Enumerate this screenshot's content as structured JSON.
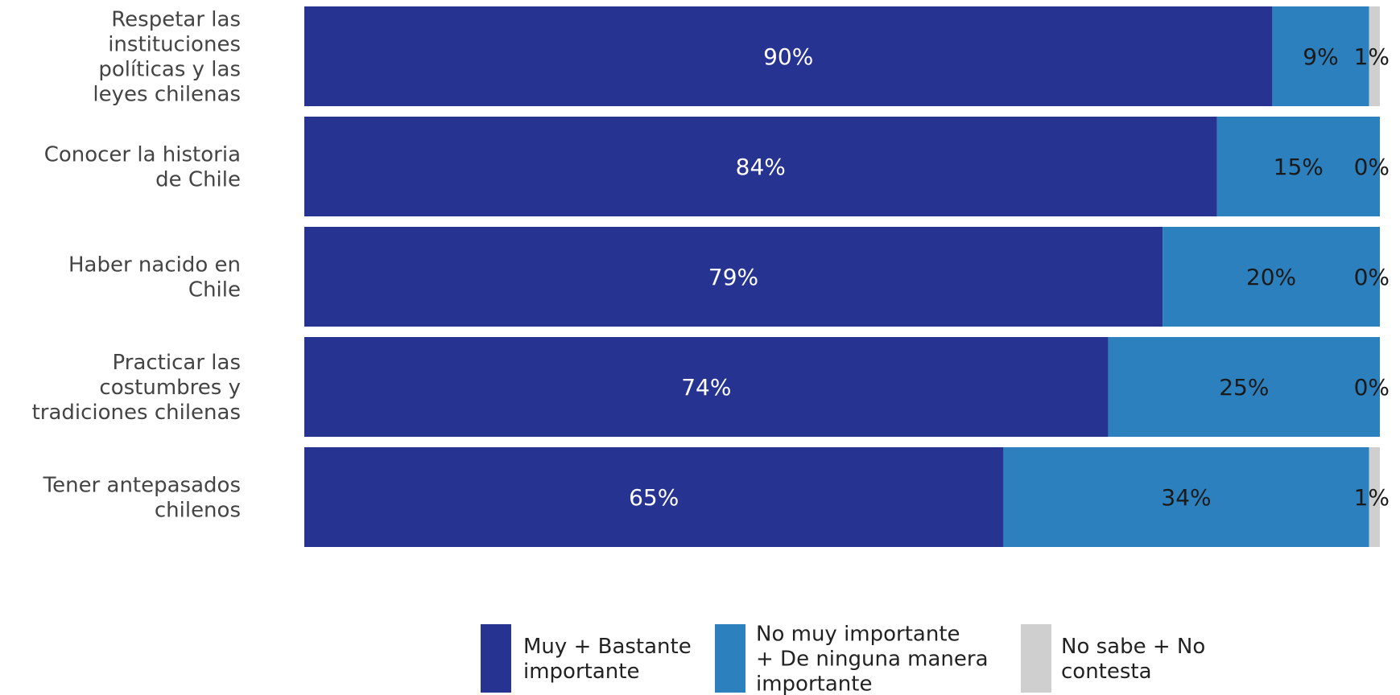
{
  "chart_data": {
    "type": "bar",
    "orientation": "horizontal",
    "stacked": true,
    "normalized": true,
    "categories": [
      [
        "Respetar las",
        "instituciones",
        "políticas y las",
        "leyes chilenas"
      ],
      [
        "Conocer la historia",
        "de Chile"
      ],
      [
        "Haber nacido en",
        "Chile"
      ],
      [
        "Practicar las",
        "costumbres y",
        "tradiciones chilenas"
      ],
      [
        "Tener antepasados",
        "chilenos"
      ]
    ],
    "series": [
      {
        "name": [
          "Muy + Bastante",
          "importante"
        ],
        "color": "#263391",
        "label_color": "#ffffff",
        "values": [
          90,
          84,
          79,
          74,
          65
        ],
        "labels": [
          "90%",
          "84%",
          "79%",
          "74%",
          "65%"
        ]
      },
      {
        "name": [
          "No muy importante",
          "+ De ninguna manera",
          "importante"
        ],
        "color": "#2d80be",
        "label_color": "#1a1a1a",
        "values": [
          9,
          15,
          20,
          25,
          34
        ],
        "labels": [
          "9%",
          "15%",
          "20%",
          "25%",
          "34%"
        ]
      },
      {
        "name": [
          "No sabe + No",
          "contesta"
        ],
        "color": "#cfcfcf",
        "label_color": "#1a1a1a",
        "values": [
          1,
          0,
          0,
          0,
          1
        ],
        "labels": [
          "1%",
          "0%",
          "0%",
          "0%",
          "1%"
        ]
      }
    ],
    "title": "",
    "xlabel": "",
    "ylabel": "",
    "grid": false,
    "legend_position": "bottom"
  }
}
